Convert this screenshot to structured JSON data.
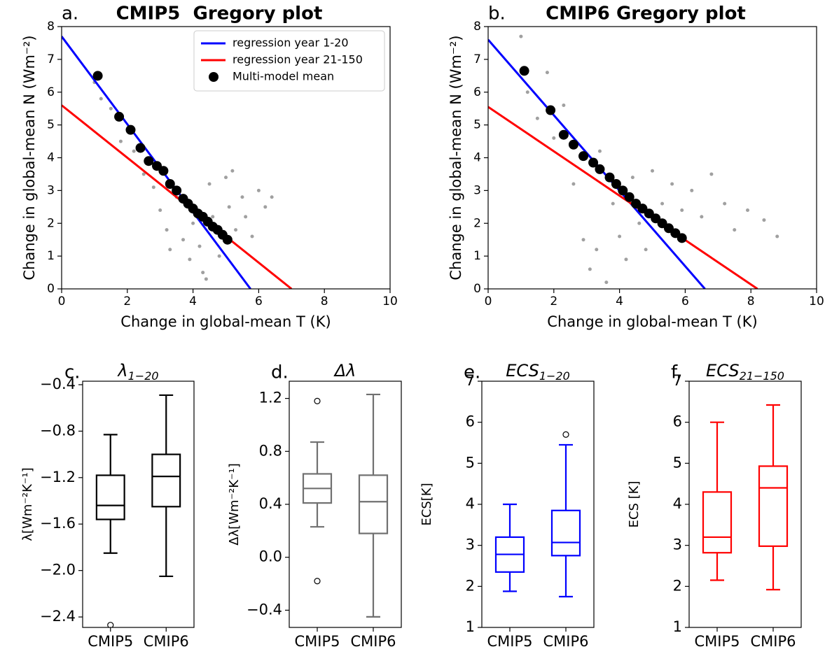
{
  "chart_data": [
    {
      "type": "scatter",
      "label": "a.",
      "title": "CMIP5  Gregory plot",
      "x_label": "Change in global-mean T (K)",
      "y_label": "Change in global-mean N (Wm⁻²)",
      "xlim": [
        0,
        10
      ],
      "ylim": [
        0,
        8
      ],
      "xticks": [
        0,
        2,
        4,
        6,
        8,
        10
      ],
      "yticks": [
        0,
        1,
        2,
        3,
        4,
        5,
        6,
        7,
        8
      ],
      "legend": "upper right",
      "series": [
        {
          "mode": "points",
          "color": "#a0a0a0",
          "x": [
            1,
            1.2,
            1.5,
            1.8,
            2.2,
            2.5,
            2.8,
            3.0,
            3.2,
            3.3,
            3.5,
            3.7,
            3.9,
            4.0,
            4.2,
            4.3,
            4.5,
            4.6,
            4.8,
            5.0,
            5.1,
            5.3,
            5.5,
            5.6,
            5.8,
            6.0,
            6.2,
            6.4,
            5.2,
            4.4
          ],
          "values": [
            6.3,
            5.8,
            5.5,
            4.5,
            4.2,
            3.5,
            3.1,
            2.4,
            1.8,
            1.2,
            2.8,
            1.5,
            0.9,
            2.0,
            1.3,
            0.5,
            3.2,
            2.2,
            1.0,
            3.4,
            2.5,
            1.8,
            2.8,
            2.2,
            1.6,
            3.0,
            2.5,
            2.8,
            3.6,
            0.3
          ]
        },
        {
          "name": "regression year 1-20",
          "mode": "line",
          "color": "#0000ff",
          "x": [
            0,
            5.75
          ],
          "values": [
            7.7,
            0
          ]
        },
        {
          "name": "regression year 21-150",
          "mode": "line",
          "color": "#ff0000",
          "x": [
            0,
            7.0
          ],
          "values": [
            5.6,
            0
          ]
        },
        {
          "name": "Multi-model mean",
          "mode": "markers",
          "color": "#000000",
          "x": [
            1.1,
            1.75,
            2.1,
            2.4,
            2.65,
            2.9,
            3.1,
            3.3,
            3.5,
            3.7,
            3.85,
            4.0,
            4.15,
            4.3,
            4.45,
            4.6,
            4.75,
            4.9,
            5.05
          ],
          "values": [
            6.5,
            5.25,
            4.85,
            4.3,
            3.9,
            3.75,
            3.6,
            3.2,
            3.0,
            2.75,
            2.6,
            2.45,
            2.3,
            2.2,
            2.05,
            1.9,
            1.8,
            1.65,
            1.5
          ]
        }
      ]
    },
    {
      "type": "scatter",
      "label": "b.",
      "title": "CMIP6 Gregory plot",
      "x_label": "Change in global-mean T (K)",
      "y_label": "Change in global-mean N (Wm⁻²)",
      "xlim": [
        0,
        10
      ],
      "ylim": [
        0,
        8
      ],
      "xticks": [
        0,
        2,
        4,
        6,
        8,
        10
      ],
      "yticks": [
        0,
        1,
        2,
        3,
        4,
        5,
        6,
        7,
        8
      ],
      "series": [
        {
          "mode": "points",
          "color": "#a0a0a0",
          "x": [
            1.0,
            1.2,
            1.5,
            1.8,
            2.0,
            2.3,
            2.6,
            2.9,
            3.1,
            3.3,
            3.4,
            3.6,
            3.8,
            4.0,
            4.2,
            4.4,
            4.6,
            4.8,
            5.0,
            5.3,
            5.6,
            5.9,
            6.2,
            6.5,
            6.8,
            7.2,
            7.5,
            7.9,
            8.4,
            8.8
          ],
          "values": [
            7.7,
            6.0,
            5.2,
            6.6,
            4.6,
            5.6,
            3.2,
            1.5,
            0.6,
            1.2,
            4.2,
            0.2,
            2.6,
            1.6,
            0.9,
            3.4,
            2.0,
            1.2,
            3.6,
            2.6,
            3.2,
            2.4,
            3.0,
            2.2,
            3.5,
            2.6,
            1.8,
            2.4,
            2.1,
            1.6
          ]
        },
        {
          "mode": "line",
          "color": "#0000ff",
          "x": [
            0,
            6.6
          ],
          "values": [
            7.6,
            0
          ]
        },
        {
          "mode": "line",
          "color": "#ff0000",
          "x": [
            0,
            8.2
          ],
          "values": [
            5.55,
            0
          ]
        },
        {
          "mode": "markers",
          "color": "#000000",
          "x": [
            1.1,
            1.9,
            2.3,
            2.6,
            2.9,
            3.2,
            3.4,
            3.7,
            3.9,
            4.1,
            4.3,
            4.5,
            4.7,
            4.9,
            5.1,
            5.3,
            5.5,
            5.7,
            5.9
          ],
          "values": [
            6.65,
            5.45,
            4.7,
            4.4,
            4.05,
            3.85,
            3.65,
            3.4,
            3.2,
            3.0,
            2.8,
            2.6,
            2.45,
            2.3,
            2.15,
            2.0,
            1.85,
            1.7,
            1.55
          ]
        }
      ]
    },
    {
      "type": "box",
      "label": "c.",
      "title": "λ",
      "title_subscript": "1−20",
      "y_label": "λ[Wm⁻²K⁻¹]",
      "color": "#000000",
      "categories": [
        "CMIP5",
        "CMIP6"
      ],
      "ylim": [
        -2.49,
        -0.37
      ],
      "yticks": [
        {
          "value": -2.4,
          "label": "−2.4"
        },
        {
          "value": -2.0,
          "label": "−2.0"
        },
        {
          "value": -1.6,
          "label": "−1.6"
        },
        {
          "value": -1.2,
          "label": "−1.2"
        },
        {
          "value": -0.8,
          "label": "−0.8"
        },
        {
          "value": -0.4,
          "label": "−0.4"
        }
      ],
      "boxes": [
        {
          "whislo": -1.85,
          "q1": -1.56,
          "med": -1.44,
          "q3": -1.18,
          "whishi": -0.83,
          "fliers": [
            -2.47
          ]
        },
        {
          "whislo": -2.05,
          "q1": -1.45,
          "med": -1.19,
          "q3": -1.0,
          "whishi": -0.49,
          "fliers": []
        }
      ]
    },
    {
      "type": "box",
      "label": "d.",
      "title": "Δλ",
      "y_label": "Δλ[Wm⁻²K⁻¹]",
      "color": "#707070",
      "categories": [
        "CMIP5",
        "CMIP6"
      ],
      "ylim": [
        -0.53,
        1.33
      ],
      "yticks": [
        {
          "value": -0.4,
          "label": "−0.4"
        },
        {
          "value": 0,
          "label": "0.0"
        },
        0.4,
        0.8,
        1.2
      ],
      "boxes": [
        {
          "whislo": 0.23,
          "q1": 0.41,
          "med": 0.52,
          "q3": 0.63,
          "whishi": 0.87,
          "fliers": [
            1.18,
            -0.18
          ]
        },
        {
          "whislo": -0.45,
          "q1": 0.18,
          "med": 0.42,
          "q3": 0.62,
          "whishi": 1.23,
          "fliers": []
        }
      ]
    },
    {
      "type": "box",
      "label": "e.",
      "title": "ECS",
      "title_subscript": "1−20",
      "y_label": "ECS[K]",
      "color": "#0000ff",
      "categories": [
        "CMIP5",
        "CMIP6"
      ],
      "ylim": [
        1,
        7
      ],
      "yticks": [
        1,
        2,
        3,
        4,
        5,
        6,
        7
      ],
      "boxes": [
        {
          "whislo": 1.88,
          "q1": 2.35,
          "med": 2.78,
          "q3": 3.2,
          "whishi": 4.0,
          "fliers": []
        },
        {
          "whislo": 1.75,
          "q1": 2.75,
          "med": 3.07,
          "q3": 3.85,
          "whishi": 5.45,
          "fliers": [
            5.7
          ]
        }
      ]
    },
    {
      "type": "box",
      "label": "f.",
      "title": "ECS",
      "title_subscript": "21−150",
      "y_label": "ECS [K]",
      "color": "#ff0000",
      "categories": [
        "CMIP5",
        "CMIP6"
      ],
      "ylim": [
        1,
        7
      ],
      "yticks": [
        1,
        2,
        3,
        4,
        5,
        6,
        7
      ],
      "boxes": [
        {
          "whislo": 2.15,
          "q1": 2.82,
          "med": 3.2,
          "q3": 4.3,
          "whishi": 6.0,
          "fliers": []
        },
        {
          "whislo": 1.92,
          "q1": 2.98,
          "med": 4.4,
          "q3": 4.93,
          "whishi": 6.42,
          "fliers": []
        }
      ]
    }
  ]
}
